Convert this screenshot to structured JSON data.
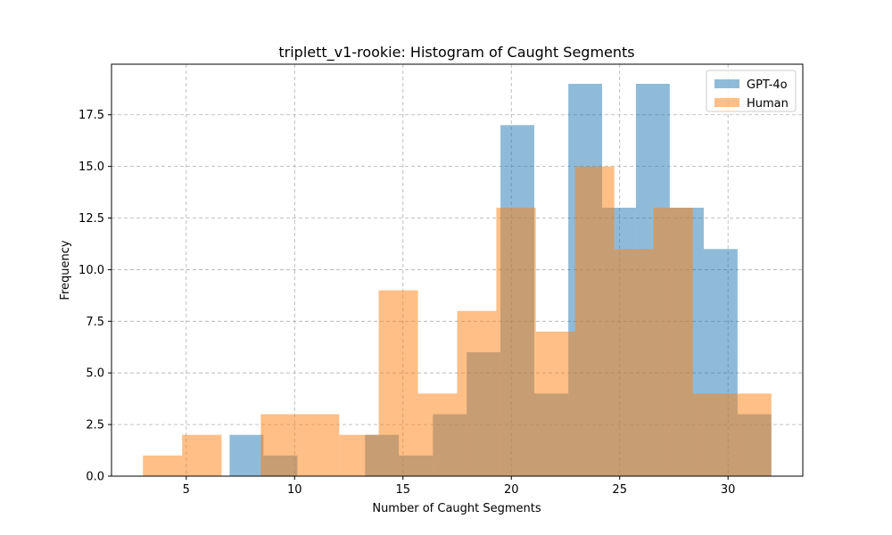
{
  "chart_data": {
    "type": "bar",
    "title": "triplett_v1-rookie: Histogram of Caught Segments",
    "xlabel": "Number of Caught Segments",
    "ylabel": "Frequency",
    "xlim": [
      1.55,
      33.45
    ],
    "ylim": [
      0,
      19.95
    ],
    "xticks": [
      5,
      10,
      15,
      20,
      25,
      30
    ],
    "xtick_labels": [
      "5",
      "10",
      "15",
      "20",
      "25",
      "30"
    ],
    "yticks": [
      0,
      2.5,
      5,
      7.5,
      10,
      12.5,
      15,
      17.5
    ],
    "ytick_labels": [
      "0.0",
      "2.5",
      "5.0",
      "7.5",
      "10.0",
      "12.5",
      "15.0",
      "17.5"
    ],
    "grid": true,
    "legend_position": "top-right",
    "series": [
      {
        "name": "GPT-4o",
        "color": "#1f77b4",
        "alpha": 0.5,
        "bin_edges": [
          7.0,
          8.56,
          10.13,
          11.69,
          13.25,
          14.81,
          16.38,
          17.94,
          19.5,
          21.06,
          22.63,
          24.19,
          25.75,
          27.31,
          28.88,
          30.44,
          32.0
        ],
        "counts": [
          2,
          1,
          0,
          0,
          2,
          1,
          3,
          6,
          17,
          4,
          19,
          13,
          19,
          13,
          11,
          3
        ]
      },
      {
        "name": "Human",
        "color": "#ff7f0e",
        "alpha": 0.5,
        "bin_edges": [
          3.0,
          4.81,
          6.63,
          8.44,
          10.25,
          12.06,
          13.88,
          15.69,
          17.5,
          19.31,
          21.13,
          22.94,
          24.75,
          26.56,
          28.38,
          30.19,
          32.0
        ],
        "counts": [
          1,
          2,
          0,
          3,
          3,
          2,
          9,
          4,
          8,
          13,
          7,
          15,
          11,
          13,
          4,
          4
        ]
      }
    ]
  }
}
